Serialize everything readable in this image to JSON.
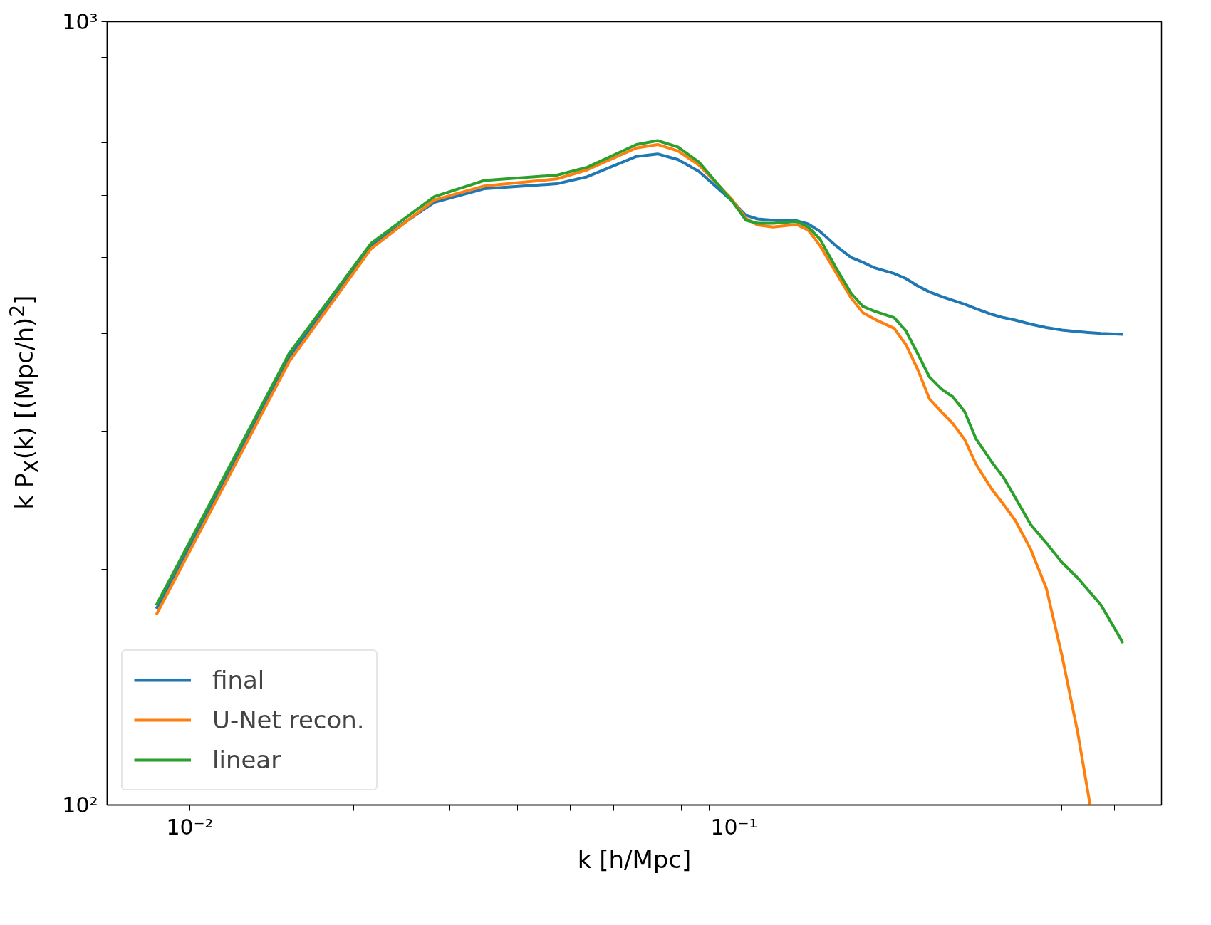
{
  "chart_data": {
    "type": "line",
    "xlabel": "k [h/Mpc]",
    "ylabel": "k P$_{X}$(k) [(Mpc/h)$^{2}$]",
    "log": "xy",
    "grid": false,
    "legend": "bottom left",
    "line_style": "solid",
    "xlim": [
      0.00705,
      0.61
    ],
    "ylim": [
      100,
      1000
    ],
    "xticks": [
      {
        "value": 0.008,
        "label": null
      },
      {
        "value": 0.009,
        "label": null
      },
      {
        "value": 0.01,
        "label": "10⁻²"
      },
      {
        "value": 0.02,
        "label": null
      },
      {
        "value": 0.03,
        "label": null
      },
      {
        "value": 0.04,
        "label": null
      },
      {
        "value": 0.05,
        "label": null
      },
      {
        "value": 0.06,
        "label": null
      },
      {
        "value": 0.07,
        "label": null
      },
      {
        "value": 0.08,
        "label": null
      },
      {
        "value": 0.09,
        "label": null
      },
      {
        "value": 0.1,
        "label": "10⁻¹"
      },
      {
        "value": 0.2,
        "label": null
      },
      {
        "value": 0.3,
        "label": null
      },
      {
        "value": 0.4,
        "label": null
      },
      {
        "value": 0.5,
        "label": null
      },
      {
        "value": 0.6,
        "label": null
      }
    ],
    "yticks": [
      {
        "value": 100,
        "label": "10²"
      },
      {
        "value": 200,
        "label": null
      },
      {
        "value": 300,
        "label": null
      },
      {
        "value": 400,
        "label": null
      },
      {
        "value": 500,
        "label": null
      },
      {
        "value": 600,
        "label": null
      },
      {
        "value": 700,
        "label": null
      },
      {
        "value": 800,
        "label": null
      },
      {
        "value": 900,
        "label": null
      },
      {
        "value": 1000,
        "label": "10³"
      }
    ],
    "x": [
      0.00868,
      0.01522,
      0.02152,
      0.02813,
      0.03475,
      0.04725,
      0.05374,
      0.06617,
      0.07236,
      0.07883,
      0.08618,
      0.099,
      0.1051,
      0.1104,
      0.118,
      0.1302,
      0.1368,
      0.1438,
      0.1537,
      0.1641,
      0.1725,
      0.1813,
      0.1969,
      0.2069,
      0.2174,
      0.2285,
      0.2401,
      0.2522,
      0.2651,
      0.2786,
      0.2976,
      0.3126,
      0.3284,
      0.3508,
      0.3748,
      0.4005,
      0.4277,
      0.4724,
      0.5183
    ],
    "series": [
      {
        "name": "final",
        "color": "#1f77b4",
        "values": [
          178,
          373,
          518,
          588,
          612,
          621,
          634,
          673,
          678,
          667,
          644,
          591,
          566,
          560,
          558,
          557,
          552,
          540,
          518,
          500,
          493,
          485,
          477,
          470,
          460,
          452,
          446,
          441,
          436,
          430,
          423,
          419,
          416,
          411,
          407,
          404,
          402,
          400,
          399
        ]
      },
      {
        "name": "U-Net recon.",
        "color": "#ff7f0e",
        "x": [
          0.00868,
          0.01522,
          0.02152,
          0.02813,
          0.03475,
          0.04725,
          0.05374,
          0.06617,
          0.07236,
          0.07883,
          0.08618,
          0.099,
          0.1051,
          0.1104,
          0.118,
          0.1302,
          0.1368,
          0.1438,
          0.1537,
          0.1641,
          0.1725,
          0.1813,
          0.1969,
          0.2069,
          0.2174,
          0.2285,
          0.2401,
          0.2522,
          0.2651,
          0.2786,
          0.2976,
          0.3126,
          0.3284,
          0.3508,
          0.3748,
          0.4005,
          0.4277,
          0.451
        ],
        "values": [
          175,
          368,
          513,
          592,
          617,
          630,
          647,
          690,
          697,
          684,
          656,
          594,
          561,
          550,
          547,
          551,
          542,
          518,
          479,
          444,
          425,
          417,
          406,
          387,
          360,
          330,
          318,
          307,
          293,
          272,
          253,
          242,
          231,
          212,
          189,
          155,
          124,
          100
        ]
      },
      {
        "name": "linear",
        "color": "#2ca02c",
        "values": [
          180,
          377,
          521,
          598,
          627,
          637,
          652,
          697,
          705,
          692,
          662,
          591,
          558,
          553,
          553,
          556,
          547,
          528,
          486,
          450,
          433,
          427,
          419,
          403,
          377,
          352,
          340,
          332,
          318,
          293,
          274,
          262,
          247,
          228,
          216,
          204,
          195,
          180,
          161
        ]
      }
    ]
  }
}
